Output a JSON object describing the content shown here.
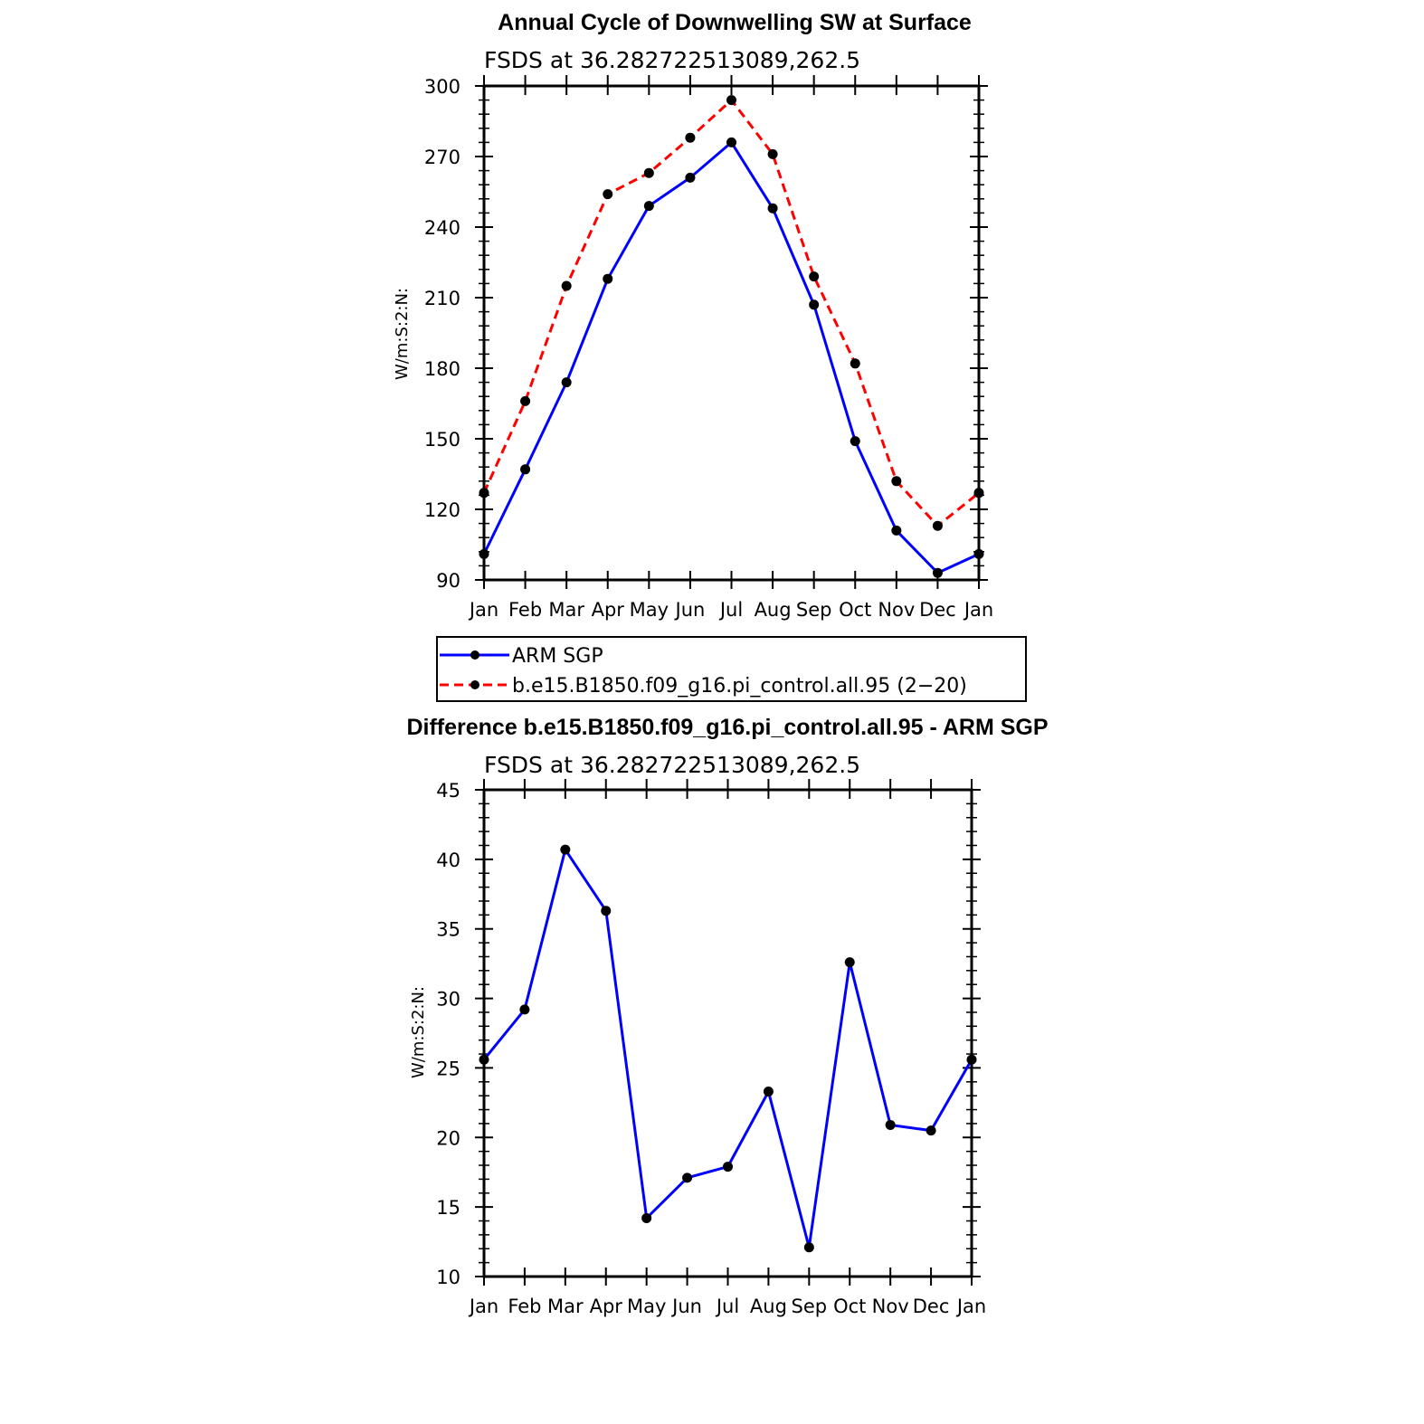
{
  "chart_data": [
    {
      "type": "line",
      "title": "Annual Cycle of Downwelling SW at Surface",
      "subtitle": "FSDS at 36.282722513089,262.5",
      "ylabel": "W/m:S:2:N:",
      "xlabel": "",
      "categories": [
        "Jan",
        "Feb",
        "Mar",
        "Apr",
        "May",
        "Jun",
        "Jul",
        "Aug",
        "Sep",
        "Oct",
        "Nov",
        "Dec",
        "Jan"
      ],
      "ylim": [
        90,
        300
      ],
      "yticks": [
        90,
        120,
        150,
        180,
        210,
        240,
        270,
        300
      ],
      "series": [
        {
          "name": "ARM SGP",
          "color": "#0000ff",
          "dash": "solid",
          "values": [
            101,
            137,
            174,
            218,
            249,
            261,
            276,
            248,
            207,
            149,
            111,
            93,
            101
          ]
        },
        {
          "name": "b.e15.B1850.f09_g16.pi_control.all.95 (2−20)",
          "color": "#ff0000",
          "dash": "dashed",
          "values": [
            127,
            166,
            215,
            254,
            263,
            278,
            294,
            271,
            219,
            182,
            132,
            113,
            127
          ]
        }
      ],
      "legend": "below"
    },
    {
      "type": "line",
      "title": "Difference b.e15.B1850.f09_g16.pi_control.all.95 - ARM SGP",
      "subtitle": "FSDS at 36.282722513089,262.5",
      "ylabel": "W/m:S:2:N:",
      "xlabel": "",
      "categories": [
        "Jan",
        "Feb",
        "Mar",
        "Apr",
        "May",
        "Jun",
        "Jul",
        "Aug",
        "Sep",
        "Oct",
        "Nov",
        "Dec",
        "Jan"
      ],
      "ylim": [
        10,
        45
      ],
      "yticks": [
        10,
        15,
        20,
        25,
        30,
        35,
        40,
        45
      ],
      "series": [
        {
          "name": "Difference",
          "color": "#0000ff",
          "dash": "solid",
          "values": [
            25.6,
            29.2,
            40.7,
            36.3,
            14.2,
            17.1,
            17.9,
            23.3,
            12.1,
            32.6,
            20.9,
            20.5,
            25.6
          ]
        }
      ]
    }
  ]
}
